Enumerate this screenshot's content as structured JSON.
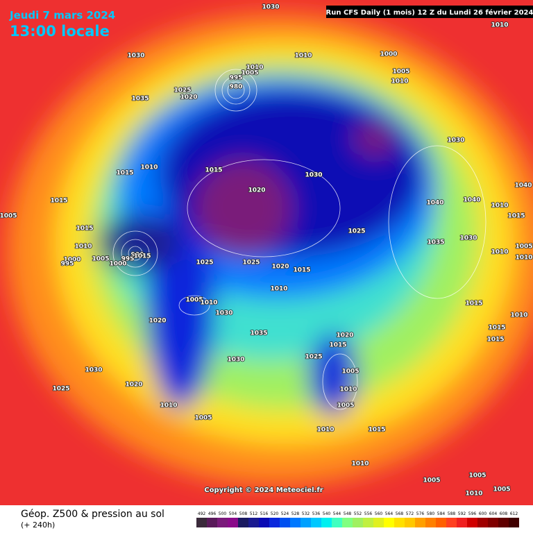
{
  "header": {
    "date": "Jeudi 7 mars 2024",
    "time": "13:00 locale",
    "run": "Run CFS Daily (1 mois) 12 Z du Lundi 26 février 2024"
  },
  "isobar_labels": [
    1030,
    1010,
    1030,
    1010,
    1000,
    1010,
    1005,
    1005,
    1010,
    995,
    980,
    1035,
    1025,
    1020,
    1030,
    1015,
    1010,
    1015,
    1030,
    1020,
    1040,
    1040,
    1040,
    1010,
    1015,
    1005,
    1015,
    1015,
    1025,
    1030,
    1035,
    1010,
    1005,
    1010,
    1010,
    1000,
    995,
    1005,
    1000,
    995,
    990,
    1015,
    1025,
    1025,
    1020,
    1015,
    1010,
    1005,
    1010,
    1015,
    1010,
    1030,
    1020,
    1015,
    1035,
    1020,
    1015,
    1015,
    1025,
    1030,
    1005,
    1030,
    1020,
    1010,
    1025,
    1010,
    1005,
    1005,
    1010,
    1015,
    1010,
    1005,
    1005,
    1010,
    1005
  ],
  "copyright": "Copyright © 2024 Meteociel.fr",
  "legend": {
    "title": "Géop. Z500 & pression au sol",
    "subtitle": "(+ 240h)",
    "ticks": [
      492,
      496,
      500,
      504,
      508,
      512,
      516,
      520,
      524,
      528,
      532,
      536,
      540,
      544,
      548,
      552,
      556,
      560,
      564,
      568,
      572,
      576,
      580,
      584,
      588,
      592,
      596,
      600,
      604,
      608,
      612
    ],
    "colors": [
      "#3a2a3a",
      "#5a1a5a",
      "#7a1a7a",
      "#8a0a8a",
      "#1a1a60",
      "#1a1a90",
      "#0a0ab4",
      "#0a28dc",
      "#0050f0",
      "#0078ff",
      "#00a0ff",
      "#00c8ff",
      "#00f0f0",
      "#40ffc0",
      "#80ff80",
      "#a0f060",
      "#c0f040",
      "#e0f020",
      "#ffff00",
      "#ffe000",
      "#ffc800",
      "#ffa000",
      "#ff8000",
      "#ff6000",
      "#ff4020",
      "#f02020",
      "#d00000",
      "#a00000",
      "#800000",
      "#600000",
      "#400000"
    ]
  }
}
